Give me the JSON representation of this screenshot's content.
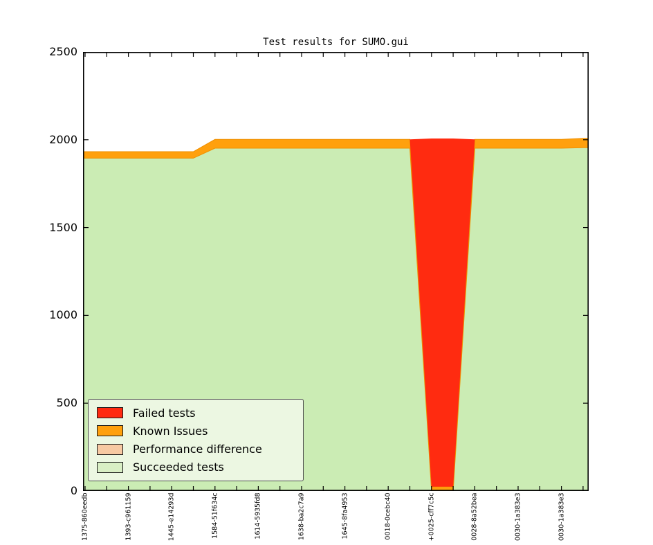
{
  "chart_data": {
    "type": "area",
    "stacked": true,
    "title": "Test results for SUMO.gui",
    "xlabel": "",
    "ylabel": "",
    "ylim": [
      0,
      2500
    ],
    "yticks": [
      0,
      500,
      1000,
      1500,
      2000,
      2500
    ],
    "grid": false,
    "n_points": 24,
    "x_label_every_n_ticks": 2,
    "x_tick_labels": [
      "1375-860eedb",
      "1393-c961159",
      "1445-e14293d",
      "1584-51f634c",
      "1614-5935fd8",
      "1638-ba2c7a9",
      "1645-8fa4953",
      "0018-0cebc40",
      "+0025-cff7c5c",
      "0028-8a52bea",
      "0030-1a383e3",
      "0030-1a383e3"
    ],
    "series": [
      {
        "name": "Succeeded tests",
        "color": "#cbecb4",
        "values": [
          1895,
          1895,
          1895,
          1895,
          1895,
          1895,
          1952,
          1952,
          1952,
          1952,
          1952,
          1952,
          1952,
          1952,
          1952,
          1952,
          0,
          0,
          1952,
          1952,
          1952,
          1952,
          1952,
          1955
        ]
      },
      {
        "name": "Performance difference",
        "color": "#f7c9a3",
        "values": [
          0,
          0,
          0,
          0,
          0,
          0,
          0,
          0,
          0,
          0,
          0,
          0,
          0,
          0,
          0,
          0,
          0,
          0,
          0,
          0,
          0,
          0,
          0,
          0
        ]
      },
      {
        "name": "Known Issues",
        "color": "#ffa00d",
        "edge_color": "#ef8f00",
        "values": [
          37,
          37,
          37,
          37,
          37,
          37,
          50,
          50,
          50,
          50,
          50,
          50,
          50,
          50,
          50,
          50,
          25,
          25,
          50,
          50,
          50,
          50,
          50,
          53
        ]
      },
      {
        "name": "Failed tests",
        "color": "#ff2b10",
        "values": [
          0,
          0,
          0,
          0,
          0,
          0,
          0,
          0,
          0,
          0,
          0,
          0,
          0,
          0,
          0,
          0,
          1982,
          1982,
          0,
          0,
          0,
          0,
          0,
          0
        ]
      }
    ],
    "legend": {
      "position": "lower left",
      "background": "#ecf7e2",
      "entries": [
        {
          "label": "Failed tests",
          "color": "#ff2b10"
        },
        {
          "label": "Known Issues",
          "color": "#ffa00d"
        },
        {
          "label": "Performance difference",
          "color": "#f7c9a3"
        },
        {
          "label": "Succeeded tests",
          "color": "#d9efc5"
        }
      ]
    },
    "colors": {
      "axis": "#000000",
      "background": "#ffffff"
    }
  }
}
